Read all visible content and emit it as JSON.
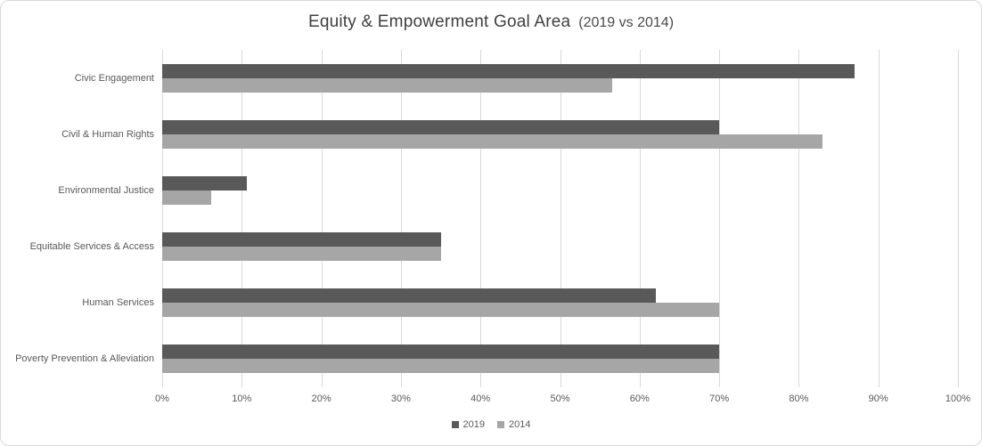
{
  "title": {
    "main": "Equity & Empowerment Goal Area",
    "suffix": "(2019 vs 2014)"
  },
  "colors": {
    "series_2019": "#595959",
    "series_2014": "#a6a6a6",
    "gridline": "#d9d9d9",
    "axis_text": "#595959",
    "title_text": "#404040",
    "frame_border": "#d9d9d9",
    "background": "#ffffff"
  },
  "legend": {
    "items": [
      {
        "label": "2019",
        "color": "#595959"
      },
      {
        "label": "2014",
        "color": "#a6a6a6"
      }
    ]
  },
  "x_axis": {
    "tick_labels": [
      "0%",
      "10%",
      "20%",
      "30%",
      "40%",
      "50%",
      "60%",
      "70%",
      "80%",
      "90%",
      "100%"
    ],
    "min": 0,
    "max": 100
  },
  "chart_data": {
    "type": "bar",
    "orientation": "horizontal",
    "title": "Equity & Empowerment Goal Area (2019 vs 2014)",
    "categories": [
      "Civic Engagement",
      "Civil & Human Rights",
      "Environmental Justice",
      "Equitable Services & Access",
      "Human Services",
      "Poverty Prevention & Alleviation"
    ],
    "series": [
      {
        "name": "2019",
        "color": "#595959",
        "values": [
          87,
          70,
          10.6,
          35,
          62,
          70
        ]
      },
      {
        "name": "2014",
        "color": "#a6a6a6",
        "values": [
          56.5,
          83,
          6.2,
          35,
          70,
          70
        ]
      }
    ],
    "xlim": [
      0,
      100
    ],
    "x_tick_format": "percent",
    "grid": "vertical",
    "legend_position": "bottom"
  }
}
